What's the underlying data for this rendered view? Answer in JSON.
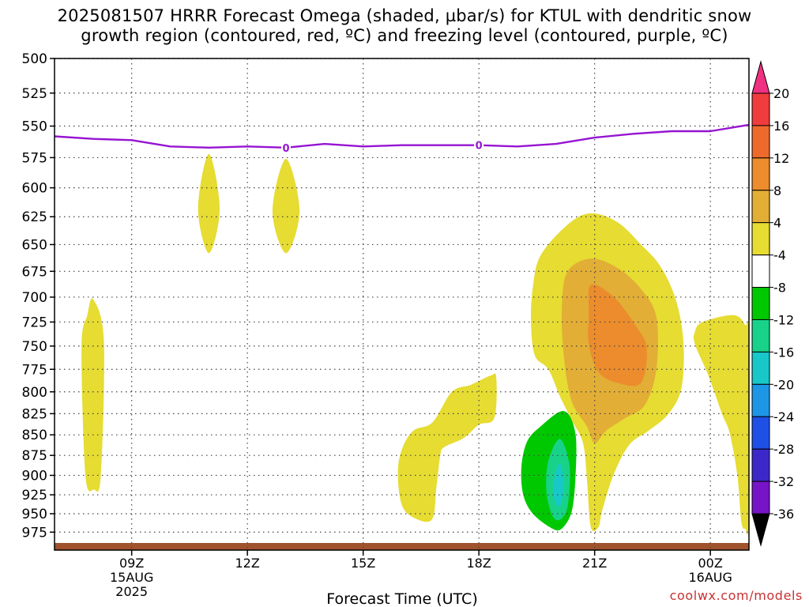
{
  "title": {
    "line1": "2025081507 HRRR Forecast Omega (shaded, µbar/s) for KTUL with dendritic snow",
    "line2": "growth region (contoured, red, ºC) and freezing level (contoured, purple, ºC)"
  },
  "credit": "coolwx.com/models",
  "chart_data": {
    "type": "heatmap",
    "title": "2025081507 HRRR Forecast Omega (shaded, µbar/s) for KTUL with dendritic snow growth region (contoured, red, ºC) and freezing level (contoured, purple, ºC)",
    "xlabel": "Forecast Time (UTC)",
    "ylabel": "",
    "xlim": [
      7.0,
      25.0
    ],
    "ylim": [
      1000,
      500
    ],
    "y_scale": "log-pressure",
    "y_ticks": [
      "500",
      "525",
      "550",
      "575",
      "600",
      "625",
      "650",
      "675",
      "700",
      "725",
      "750",
      "775",
      "800",
      "825",
      "850",
      "875",
      "900",
      "925",
      "950",
      "975"
    ],
    "x_ticks": [
      {
        "hour": 9,
        "label": "09Z",
        "sub": [
          "15AUG",
          "2025"
        ]
      },
      {
        "hour": 12,
        "label": "12Z",
        "sub": []
      },
      {
        "hour": 15,
        "label": "15Z",
        "sub": []
      },
      {
        "hour": 18,
        "label": "18Z",
        "sub": []
      },
      {
        "hour": 21,
        "label": "21Z",
        "sub": []
      },
      {
        "hour": 24,
        "label": "00Z",
        "sub": [
          "16AUG"
        ]
      }
    ],
    "grid": true,
    "colorbar": {
      "labels": [
        "20",
        "16",
        "12",
        "8",
        "4",
        "-4",
        "-8",
        "-12",
        "-16",
        "-20",
        "-24",
        "-28",
        "-32",
        "-36"
      ],
      "colors": [
        "#f03080",
        "#f03c3c",
        "#ee6a2c",
        "#ec8c2c",
        "#e2ae36",
        "#e6dc32",
        "#ffffff",
        "#00c800",
        "#18d28a",
        "#18c8c8",
        "#1e96e6",
        "#1e50e6",
        "#3c28c8",
        "#7814c8",
        "#aa14c8",
        "#a0a0a0",
        "#000000"
      ]
    },
    "freezing_level": {
      "color": "#9614d2",
      "label": "0",
      "points": [
        [
          7.0,
          558
        ],
        [
          8.0,
          560
        ],
        [
          9.0,
          561
        ],
        [
          10.0,
          566
        ],
        [
          11.0,
          567
        ],
        [
          12.0,
          566
        ],
        [
          13.0,
          567
        ],
        [
          14.0,
          564
        ],
        [
          15.0,
          566
        ],
        [
          16.0,
          565
        ],
        [
          17.0,
          565
        ],
        [
          18.0,
          565
        ],
        [
          19.0,
          566
        ],
        [
          20.0,
          564
        ],
        [
          21.0,
          559
        ],
        [
          22.0,
          556
        ],
        [
          23.0,
          554
        ],
        [
          24.0,
          554
        ],
        [
          25.0,
          549
        ]
      ],
      "label_hours": [
        13.0,
        18.0
      ]
    },
    "omega_regions": [
      {
        "level": 4,
        "points": [
          [
            8.0,
            702
          ],
          [
            8.28,
            745
          ],
          [
            8.2,
            900
          ],
          [
            8.02,
            918
          ],
          [
            7.8,
            900
          ],
          [
            7.7,
            752
          ],
          [
            7.85,
            718
          ]
        ]
      },
      {
        "level": 4,
        "points": [
          [
            11.0,
            572
          ],
          [
            11.28,
            618
          ],
          [
            11.0,
            658
          ],
          [
            10.72,
            618
          ]
        ]
      },
      {
        "level": 4,
        "points": [
          [
            13.0,
            576
          ],
          [
            13.35,
            620
          ],
          [
            13.0,
            658
          ],
          [
            12.65,
            620
          ]
        ]
      },
      {
        "level": 4,
        "points": [
          [
            16.8,
            835
          ],
          [
            17.3,
            800
          ],
          [
            17.8,
            792
          ],
          [
            18.3,
            782
          ],
          [
            18.45,
            784
          ],
          [
            18.4,
            830
          ],
          [
            18.0,
            838
          ],
          [
            17.6,
            854
          ],
          [
            17.1,
            865
          ],
          [
            17.0,
            875
          ],
          [
            16.9,
            915
          ],
          [
            16.78,
            958
          ],
          [
            16.3,
            955
          ],
          [
            16.0,
            938
          ],
          [
            15.9,
            898
          ],
          [
            16.0,
            868
          ],
          [
            16.3,
            845
          ]
        ]
      },
      {
        "level": 4,
        "points": [
          [
            19.6,
            660
          ],
          [
            20.3,
            632
          ],
          [
            20.9,
            622
          ],
          [
            21.6,
            630
          ],
          [
            22.2,
            650
          ],
          [
            22.7,
            670
          ],
          [
            23.1,
            702
          ],
          [
            23.3,
            745
          ],
          [
            23.25,
            796
          ],
          [
            22.9,
            826
          ],
          [
            22.4,
            845
          ],
          [
            21.9,
            862
          ],
          [
            21.5,
            898
          ],
          [
            21.2,
            945
          ],
          [
            21.1,
            968
          ],
          [
            20.9,
            968
          ],
          [
            20.8,
            905
          ],
          [
            20.7,
            860
          ],
          [
            20.4,
            832
          ],
          [
            20.1,
            805
          ],
          [
            19.8,
            775
          ],
          [
            19.45,
            760
          ],
          [
            19.35,
            725
          ],
          [
            19.4,
            690
          ]
        ]
      },
      {
        "level": 8,
        "points": [
          [
            20.3,
            675
          ],
          [
            20.9,
            663
          ],
          [
            21.6,
            672
          ],
          [
            22.2,
            692
          ],
          [
            22.6,
            720
          ],
          [
            22.6,
            775
          ],
          [
            22.3,
            815
          ],
          [
            21.8,
            830
          ],
          [
            21.3,
            845
          ],
          [
            21.0,
            860
          ],
          [
            20.8,
            840
          ],
          [
            20.4,
            810
          ],
          [
            20.2,
            760
          ],
          [
            20.15,
            710
          ]
        ]
      },
      {
        "level": 12,
        "points": [
          [
            20.9,
            688
          ],
          [
            21.5,
            700
          ],
          [
            22.05,
            728
          ],
          [
            22.35,
            752
          ],
          [
            22.2,
            790
          ],
          [
            21.6,
            790
          ],
          [
            21.1,
            778
          ],
          [
            20.85,
            748
          ],
          [
            20.85,
            718
          ]
        ]
      },
      {
        "level": 4,
        "points": [
          [
            24.6,
            718
          ],
          [
            24.9,
            728
          ],
          [
            25.0,
            742
          ],
          [
            25.0,
            955
          ],
          [
            24.9,
            970
          ],
          [
            24.8,
            960
          ],
          [
            24.7,
            900
          ],
          [
            24.5,
            848
          ],
          [
            24.3,
            825
          ],
          [
            23.95,
            782
          ],
          [
            23.6,
            748
          ],
          [
            23.6,
            735
          ],
          [
            23.8,
            725
          ]
        ]
      },
      {
        "level": -4,
        "points": [
          [
            20.2,
            822
          ],
          [
            20.5,
            848
          ],
          [
            20.5,
            905
          ],
          [
            20.4,
            948
          ],
          [
            20.15,
            970
          ],
          [
            19.9,
            970
          ],
          [
            19.4,
            950
          ],
          [
            19.15,
            925
          ],
          [
            19.1,
            890
          ],
          [
            19.25,
            858
          ],
          [
            19.6,
            840
          ]
        ]
      },
      {
        "level": -8,
        "points": [
          [
            20.1,
            855
          ],
          [
            20.35,
            888
          ],
          [
            20.3,
            940
          ],
          [
            20.1,
            958
          ],
          [
            19.9,
            952
          ],
          [
            19.75,
            920
          ],
          [
            19.8,
            882
          ]
        ]
      },
      {
        "level": -12,
        "points": [
          [
            20.1,
            885
          ],
          [
            20.2,
            912
          ],
          [
            20.1,
            940
          ],
          [
            19.95,
            930
          ],
          [
            19.95,
            905
          ]
        ]
      }
    ],
    "ground_level_hpa": 990,
    "ground_color": "#a0522d"
  }
}
